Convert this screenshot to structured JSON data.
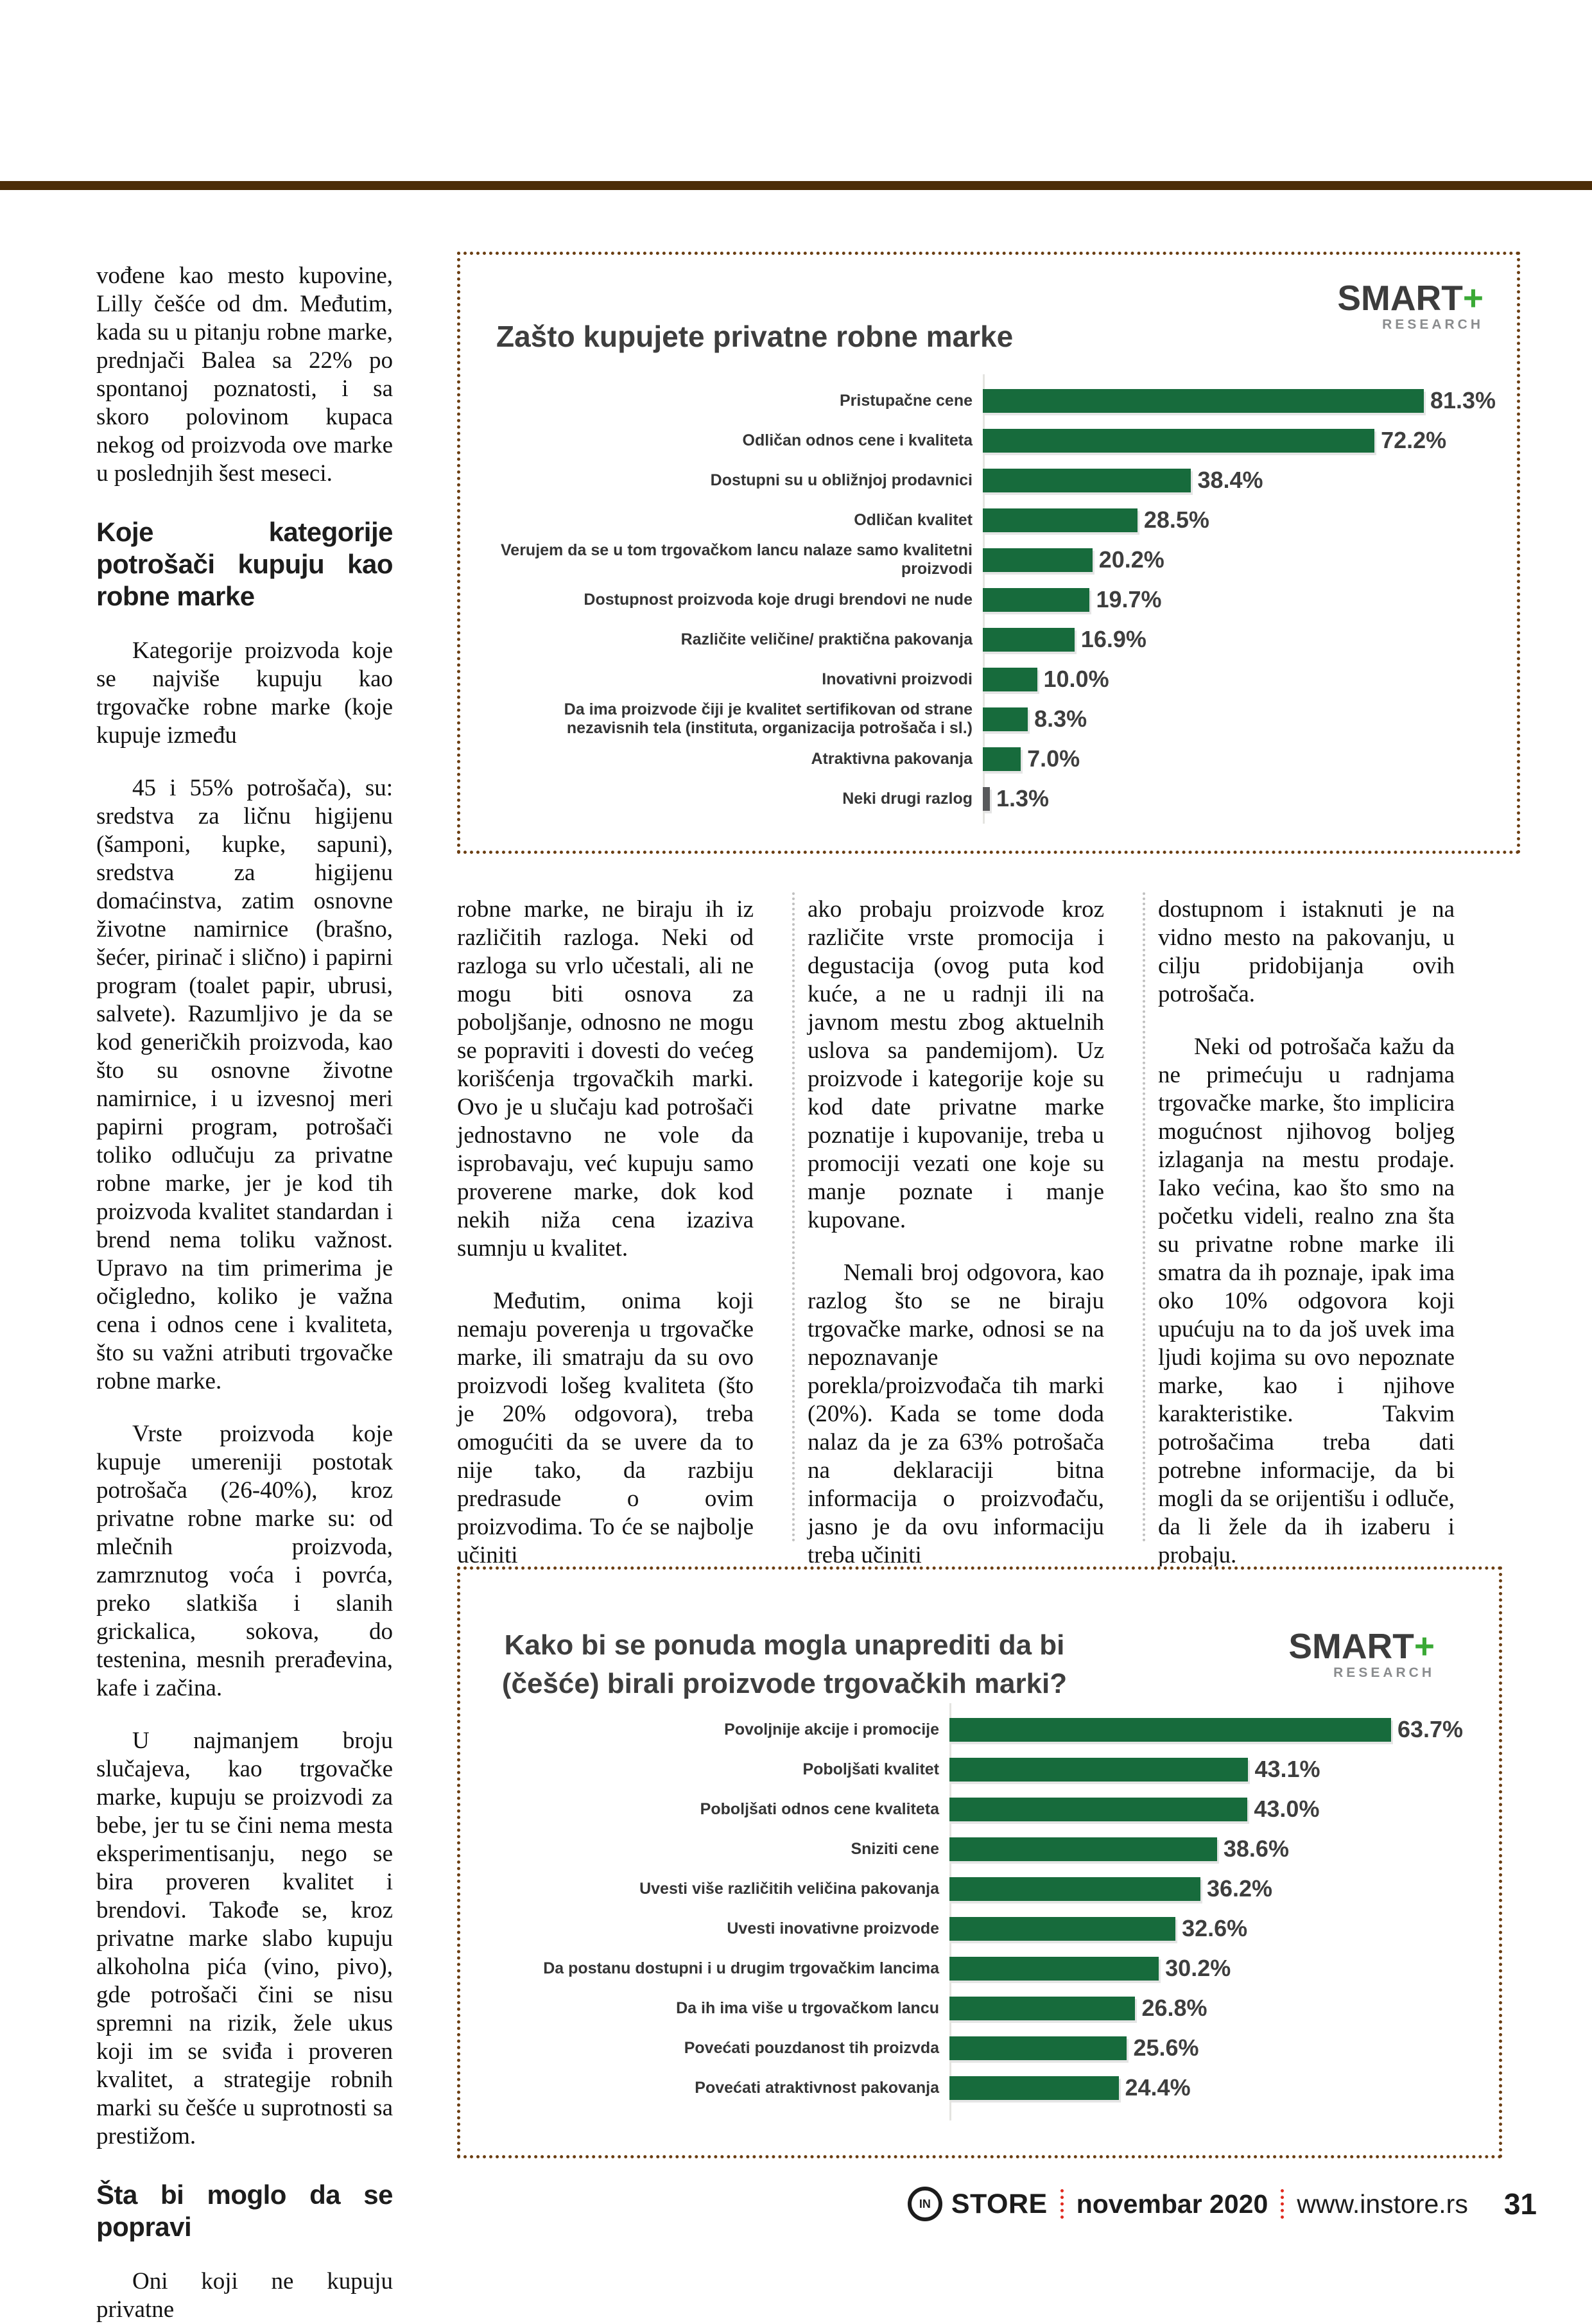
{
  "left_column": {
    "p1": "vođene kao mesto kupovine, Lilly češće od dm. Međutim, kada su u pitanju robne marke, prednjači Balea sa 22% po spontanoj poznatosti, i sa skoro polovinom kupaca nekog od proizvoda ove marke u poslednjih šest meseci.",
    "heading1": "Koje kategorije potrošači kupuju kao robne marke",
    "p2": "Kategorije proizvoda koje se najviše kupuju kao trgovačke robne marke (koje kupuje između",
    "p3": "45 i 55% potrošača), su: sredstva za ličnu higijenu (šamponi, kupke, sapuni), sredstva za higijenu domaćinstva, zatim osnovne životne namirnice (brašno, šećer, pirinač i slično) i papirni program (toalet papir, ubrusi, salvete). Razumljivo je da se kod generičkih proizvoda, kao što su osnovne životne namirnice, i u izvesnoj meri papirni program, potrošači toliko odlučuju za privatne robne marke, jer je kod tih proizvoda kvalitet standardan i brend nema toliku važnost. Upravo na tim primerima je očigledno, koliko je važna cena i odnos cene i kvaliteta, što su važni atributi trgovačke robne marke.",
    "p4": "Vrste proizvoda koje kupuje umereniji postotak potrošača (26-40%), kroz privatne robne marke su: od mlečnih proizvoda, zamrznutog voća i povrća, preko slatkiša i slanih grickalica, sokova, do testenina, mesnih prerađevina, kafe i začina.",
    "p5": "U najmanjem broju slučajeva, kao trgovačke marke, kupuju se proizvodi za bebe, jer tu se čini nema mesta eksperimentisanju, nego se bira proveren kvalitet i brendovi. Takođe se, kroz privatne marke slabo kupuju alkoholna pića (vino, pivo), gde potrošači čini se nisu spremni na rizik, žele ukus koji im se sviđa i proveren kvalitet, a strategije robnih marki su češće u suprotnosti sa prestižom.",
    "heading2": "Šta bi moglo da se popravi",
    "p6": "Oni koji ne kupuju privatne"
  },
  "middle_columns": {
    "col1": [
      "robne marke, ne biraju ih iz različitih razloga. Neki od razloga su vrlo učestali, ali ne mogu biti osnova za poboljšanje, odnosno ne mogu se popraviti i dovesti do većeg korišćenja trgovačkih marki. Ovo je u slučaju kad potrošači jednostavno ne vole da isprobavaju, već kupuju samo proverene marke, dok kod nekih niža cena izaziva sumnju u kvalitet.",
      "Međutim, onima koji nemaju poverenja u trgovačke marke, ili smatraju da su ovo proizvodi lošeg kvaliteta (što je 20% odgovora), treba omogućiti da se uvere da to nije tako, da razbiju predrasude o ovim proizvodima. To će se najbolje učiniti"
    ],
    "col2": [
      "ako probaju proizvode kroz različite vrste promocija i degustacija (ovog puta kod kuće, a ne u radnji ili na javnom mestu zbog aktuelnih uslova sa pandemijom). Uz proizvode i kategorije koje su kod date privatne marke poznatije i kupovanije, treba u promociji vezati one koje su manje poznate i manje kupovane.",
      "Nemali broj odgovora, kao razlog što se ne biraju trgovačke marke, odnosi se na nepoznavanje porekla/proizvođača tih marki (20%). Kada se tome doda nalaz da je za 63% potrošača na deklaraciji bitna informacija o proizvođaču, jasno je da ovu informaciju treba učiniti"
    ],
    "col3": [
      "dostupnom i istaknuti je na vidno mesto na pakovanju, u cilju pridobijanja ovih potrošača.",
      "Neki od potrošača kažu da ne primećuju u radnjama trgovačke marke, što implicira mogućnost njihovog boljeg izlaganja na mestu prodaje. Iako većina, kao što smo na početku videli, realno zna šta su privatne robne marke ili smatra da ih poznaje, ipak ima oko 10% odgovora koji upućuju na to da još uvek ima ljudi kojima su ovo nepoznate marke, kao i njihove karakteristike. Takvim potrošačima treba dati potrebne informacije, da bi mogli da se orijentišu i odluče, da li žele da ih izaberu i probaju."
    ]
  },
  "chart_data": [
    {
      "type": "bar",
      "orientation": "horizontal",
      "title": "Zašto kupujete privatne robne marke",
      "unit": "%",
      "xlim": [
        0,
        100
      ],
      "grid": false,
      "bar_color": "#176b3c",
      "logo": {
        "brand": "SMART",
        "plus": "+",
        "sub": "RESEARCH"
      },
      "rows": [
        {
          "label": "Pristupačne cene",
          "value": 81.3,
          "display": "81.3%"
        },
        {
          "label": "Odličan odnos cene i kvaliteta",
          "value": 72.2,
          "display": "72.2%"
        },
        {
          "label": "Dostupni su u obližnjoj prodavnici",
          "value": 38.4,
          "display": "38.4%"
        },
        {
          "label": "Odličan kvalitet",
          "value": 28.5,
          "display": "28.5%"
        },
        {
          "label": "Verujem da se u tom trgovačkom lancu nalaze samo kvalitetni proizvodi",
          "value": 20.2,
          "display": "20.2%"
        },
        {
          "label": "Dostupnost proizvoda koje drugi brendovi ne nude",
          "value": 19.7,
          "display": "19.7%"
        },
        {
          "label": "Različite veličine/ praktična pakovanja",
          "value": 16.9,
          "display": "16.9%"
        },
        {
          "label": "Inovativni proizvodi",
          "value": 10.0,
          "display": "10.0%"
        },
        {
          "label": "Da ima proizvode čiji je kvalitet sertifikovan od strane nezavisnih tela (instituta, organizacija potrošača i sl.)",
          "value": 8.3,
          "display": "8.3%"
        },
        {
          "label": "Atraktivna pakovanja",
          "value": 7.0,
          "display": "7.0%"
        },
        {
          "label": "Neki drugi razlog",
          "value": 1.3,
          "display": "1.3%",
          "color": "#58595b"
        }
      ]
    },
    {
      "type": "bar",
      "orientation": "horizontal",
      "title": "Kako bi se ponuda mogla unaprediti da bi (češće) birali proizvode trgovačkih marki?",
      "unit": "%",
      "xlim": [
        0,
        100
      ],
      "grid": false,
      "bar_color": "#176b3c",
      "logo": {
        "brand": "SMART",
        "plus": "+",
        "sub": "RESEARCH"
      },
      "rows": [
        {
          "label": "Povoljnije akcije i promocije",
          "value": 63.7,
          "display": "63.7%"
        },
        {
          "label": "Poboljšati kvalitet",
          "value": 43.1,
          "display": "43.1%"
        },
        {
          "label": "Poboljšati odnos cene kvaliteta",
          "value": 43.0,
          "display": "43.0%"
        },
        {
          "label": "Sniziti cene",
          "value": 38.6,
          "display": "38.6%"
        },
        {
          "label": "Uvesti više različitih veličina pakovanja",
          "value": 36.2,
          "display": "36.2%"
        },
        {
          "label": "Uvesti inovativne proizvode",
          "value": 32.6,
          "display": "32.6%"
        },
        {
          "label": "Da postanu dostupni i u drugim trgovačkim lancima",
          "value": 30.2,
          "display": "30.2%"
        },
        {
          "label": "Da ih ima više u trgovačkom lancu",
          "value": 26.8,
          "display": "26.8%"
        },
        {
          "label": "Povećati pouzdanost tih proizvda",
          "value": 25.6,
          "display": "25.6%"
        },
        {
          "label": "Povećati atraktivnost pakovanja",
          "value": 24.4,
          "display": "24.4%"
        }
      ]
    }
  ],
  "footer": {
    "brand_in": "IN",
    "brand_store": "STORE",
    "issue": "novembar 2020",
    "website": "www.instore.rs",
    "page_number": "31"
  }
}
